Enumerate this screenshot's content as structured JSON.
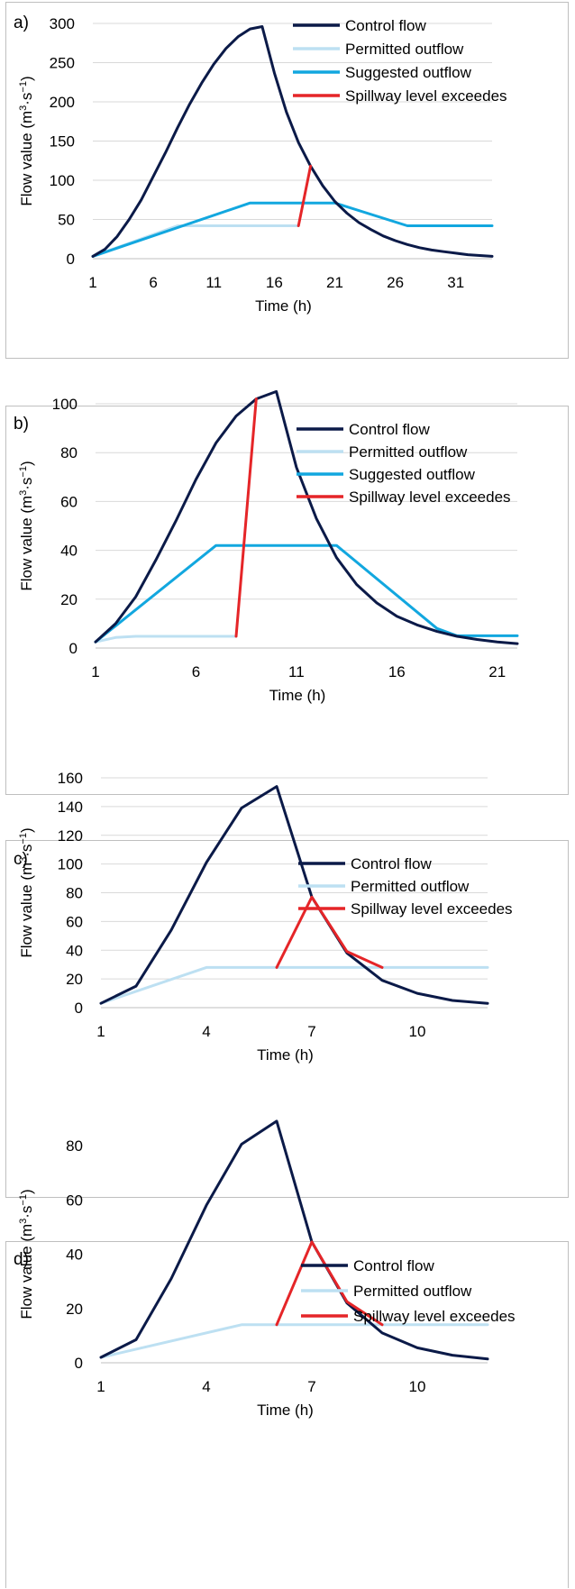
{
  "chart_data": [
    {
      "type": "line",
      "panel_label": "a)",
      "xlabel": "Time (h)",
      "ylabel_main": "Flow value (m",
      "ylabel_sup1": "3",
      "ylabel_mid": "·s",
      "ylabel_sup2": "−1",
      "ylabel_end": ")",
      "xlim": [
        1,
        34
      ],
      "ylim": [
        0,
        300
      ],
      "xticks": [
        1,
        6,
        11,
        16,
        21,
        26,
        31
      ],
      "yticks": [
        0,
        50,
        100,
        150,
        200,
        250,
        300
      ],
      "grid": true,
      "legend_position": "top-right",
      "series": [
        {
          "name": "Control flow",
          "color": "#0b1a48",
          "points": [
            [
              1,
              3
            ],
            [
              2,
              12
            ],
            [
              3,
              28
            ],
            [
              4,
              50
            ],
            [
              5,
              75
            ],
            [
              6,
              105
            ],
            [
              7,
              135
            ],
            [
              8,
              167
            ],
            [
              9,
              197
            ],
            [
              10,
              224
            ],
            [
              11,
              248
            ],
            [
              12,
              268
            ],
            [
              13,
              283
            ],
            [
              14,
              293
            ],
            [
              15,
              296
            ],
            [
              16,
              237
            ],
            [
              17,
              187
            ],
            [
              18,
              148
            ],
            [
              19,
              118
            ],
            [
              20,
              93
            ],
            [
              21,
              73
            ],
            [
              22,
              58
            ],
            [
              23,
              46
            ],
            [
              24,
              37
            ],
            [
              25,
              29
            ],
            [
              26,
              23
            ],
            [
              27,
              18
            ],
            [
              28,
              14
            ],
            [
              29,
              11
            ],
            [
              30,
              9
            ],
            [
              31,
              7
            ],
            [
              32,
              5
            ],
            [
              33,
              4
            ],
            [
              34,
              3
            ]
          ]
        },
        {
          "name": "Permitted outflow",
          "color": "#bde0f2",
          "points": [
            [
              1,
              3
            ],
            [
              8,
              42
            ],
            [
              18,
              42
            ]
          ]
        },
        {
          "name": "Suggested outflow",
          "color": "#12a7df",
          "points": [
            [
              1,
              3
            ],
            [
              14,
              71
            ],
            [
              21,
              71
            ],
            [
              27,
              42
            ],
            [
              34,
              42
            ]
          ]
        },
        {
          "name": "Spillway level exceedes",
          "color": "#e52528",
          "points": [
            [
              18,
              42
            ],
            [
              19,
              118
            ]
          ]
        }
      ]
    },
    {
      "type": "line",
      "panel_label": "b)",
      "xlabel": "Time (h)",
      "ylabel_main": "Flow value (m",
      "ylabel_sup1": "3",
      "ylabel_mid": "·s",
      "ylabel_sup2": "−1",
      "ylabel_end": ")",
      "xlim": [
        1,
        22
      ],
      "ylim": [
        0,
        110
      ],
      "xticks": [
        1,
        6,
        11,
        16,
        21
      ],
      "yticks": [
        0,
        20,
        40,
        60,
        80,
        100
      ],
      "grid": true,
      "legend_position": "top-right",
      "series": [
        {
          "name": "Control flow",
          "color": "#0b1a48",
          "points": [
            [
              1,
              2.5
            ],
            [
              2,
              10
            ],
            [
              3,
              21
            ],
            [
              4,
              36
            ],
            [
              5,
              52
            ],
            [
              6,
              69
            ],
            [
              7,
              84
            ],
            [
              8,
              95
            ],
            [
              9,
              102
            ],
            [
              10,
              105
            ],
            [
              11,
              74
            ],
            [
              12,
              53
            ],
            [
              13,
              37
            ],
            [
              14,
              26
            ],
            [
              15,
              18.5
            ],
            [
              16,
              13
            ],
            [
              17,
              9.5
            ],
            [
              18,
              6.8
            ],
            [
              19,
              4.8
            ],
            [
              20,
              3.5
            ],
            [
              21,
              2.5
            ],
            [
              22,
              1.8
            ]
          ]
        },
        {
          "name": "Permitted outflow",
          "color": "#bde0f2",
          "points": [
            [
              1,
              2.5
            ],
            [
              2,
              4.3
            ],
            [
              3,
              4.8
            ],
            [
              8,
              4.8
            ]
          ]
        },
        {
          "name": "Suggested outflow",
          "color": "#12a7df",
          "points": [
            [
              1,
              2.5
            ],
            [
              7,
              42
            ],
            [
              13,
              42
            ],
            [
              18,
              8
            ],
            [
              19,
              5
            ],
            [
              22,
              5
            ]
          ]
        },
        {
          "name": "Spillway level exceedes",
          "color": "#e52528",
          "points": [
            [
              8,
              4.8
            ],
            [
              9,
              102
            ]
          ]
        }
      ]
    },
    {
      "type": "line",
      "panel_label": "c)",
      "xlabel": "Time (h)",
      "ylabel_main": "Flow value (m",
      "ylabel_sup1": "3",
      "ylabel_mid": "·s",
      "ylabel_sup2": "−1",
      "ylabel_end": ")",
      "xlim": [
        1,
        12
      ],
      "ylim": [
        0,
        160
      ],
      "xticks": [
        1,
        4,
        7,
        10
      ],
      "yticks": [
        0,
        20,
        40,
        60,
        80,
        100,
        120,
        140,
        160
      ],
      "grid": true,
      "legend_position": "top-right",
      "series": [
        {
          "name": "Control flow",
          "color": "#0b1a48",
          "points": [
            [
              1,
              3
            ],
            [
              2,
              15
            ],
            [
              3,
              54
            ],
            [
              4,
              101
            ],
            [
              5,
              139
            ],
            [
              6,
              154
            ],
            [
              7,
              77
            ],
            [
              8,
              38
            ],
            [
              9,
              19
            ],
            [
              10,
              10
            ],
            [
              11,
              5
            ],
            [
              12,
              3
            ]
          ]
        },
        {
          "name": "Permitted outflow",
          "color": "#bde0f2",
          "points": [
            [
              1,
              3
            ],
            [
              4,
              28
            ],
            [
              6,
              28
            ],
            [
              9,
              28
            ],
            [
              12,
              28
            ]
          ]
        },
        {
          "name": "Spillway level exceedes",
          "color": "#e52528",
          "points": [
            [
              6,
              28
            ],
            [
              7,
              77
            ],
            [
              8,
              39
            ],
            [
              9,
              28
            ]
          ]
        }
      ]
    },
    {
      "type": "line",
      "panel_label": "d)",
      "xlabel": "Time (h)",
      "ylabel_main": "Flow value (m",
      "ylabel_sup1": "3",
      "ylabel_mid": "·s",
      "ylabel_sup2": "−1",
      "ylabel_end": ")",
      "xlim": [
        1,
        12
      ],
      "ylim": [
        0,
        90
      ],
      "xticks": [
        1,
        4,
        7,
        10
      ],
      "yticks": [
        0,
        20,
        40,
        60,
        80
      ],
      "grid": false,
      "legend_position": "top-right",
      "series": [
        {
          "name": "Control flow",
          "color": "#0b1a48",
          "points": [
            [
              1,
              2
            ],
            [
              2,
              8.5
            ],
            [
              3,
              31
            ],
            [
              4,
              58
            ],
            [
              5,
              80.5
            ],
            [
              6,
              89
            ],
            [
              7,
              44.5
            ],
            [
              8,
              22
            ],
            [
              9,
              11
            ],
            [
              10,
              5.5
            ],
            [
              11,
              2.8
            ],
            [
              12,
              1.4
            ]
          ]
        },
        {
          "name": "Permitted outflow",
          "color": "#bde0f2",
          "points": [
            [
              1,
              2
            ],
            [
              5,
              14
            ],
            [
              6,
              14
            ],
            [
              9,
              14
            ],
            [
              12,
              14
            ]
          ]
        },
        {
          "name": "Spillway level exceedes",
          "color": "#e52528",
          "points": [
            [
              6,
              14
            ],
            [
              7,
              44.5
            ],
            [
              8,
              22.5
            ],
            [
              9,
              14
            ]
          ]
        }
      ]
    }
  ]
}
